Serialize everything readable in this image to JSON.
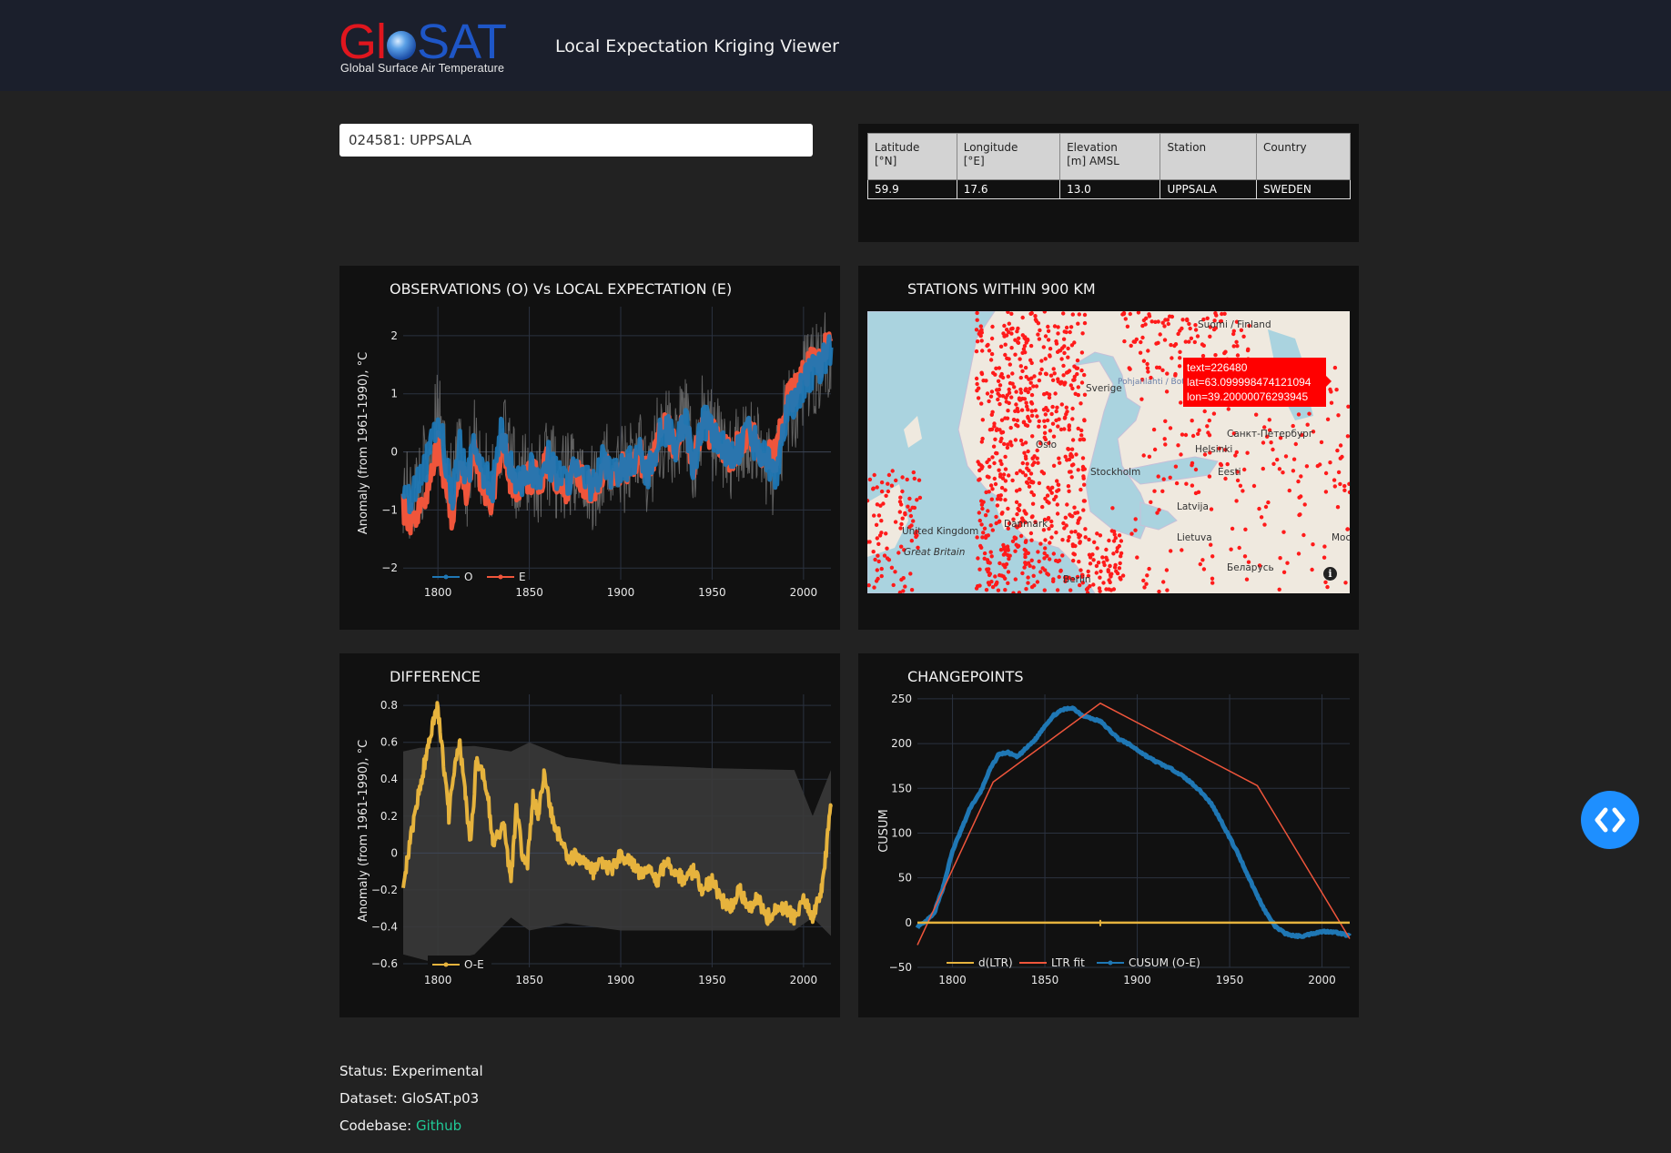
{
  "header": {
    "logo_text": "GloSAT",
    "logo_subtitle": "Global Surface Air Temperature",
    "title": "Local Expectation Kriging Viewer"
  },
  "station_select": {
    "value": "024581: UPPSALA"
  },
  "station_table": {
    "headers": [
      "Latitude\n [°N]",
      "Longitude\n [°E]",
      "Elevation\n [m] AMSL",
      "Station",
      "Country"
    ],
    "row": [
      "59.9",
      "17.6",
      "13.0",
      "UPPSALA",
      "SWEDEN"
    ]
  },
  "panels": {
    "obs": {
      "title": "OBSERVATIONS (O) Vs LOCAL EXPECTATION (E)"
    },
    "map": {
      "title": "STATIONS WITHIN 900 KM"
    },
    "diff": {
      "title": "DIFFERENCE"
    },
    "cp": {
      "title": "CHANGEPOINTS"
    }
  },
  "map": {
    "labels": [
      "Suomi / Finland",
      "Sverige",
      "Pohjanlahti / Bottniska viken",
      "Oslo",
      "Helsinki",
      "Санкт-Петербург",
      "Stockholm",
      "Eesti",
      "Latvija",
      "Danmark",
      "Lietuva",
      "Москва",
      "United Kingdom",
      "Great Britain",
      "Беларусь",
      "Berlin"
    ],
    "tooltip": [
      "text=226480",
      "lat=63.099998474121094",
      "lon=39.20000076293945"
    ],
    "colors": {
      "water": "#aad3df",
      "land": "#efe9df",
      "station": "#ff1a1a"
    }
  },
  "footer": {
    "status": "Status: Experimental",
    "dataset": "Dataset: GloSAT.p03",
    "codebase_label": "Codebase: ",
    "codebase_link": "Github"
  },
  "chart_data": [
    {
      "id": "obs",
      "type": "line",
      "title": "OBSERVATIONS (O) Vs LOCAL EXPECTATION (E)",
      "ylabel": "Anomaly (from 1961-1990), °C",
      "xlim": [
        1781,
        2015
      ],
      "ylim": [
        -2.2,
        2.5
      ],
      "xticks": [
        1800,
        1850,
        1900,
        1950,
        2000
      ],
      "yticks": [
        -2,
        -1,
        0,
        1,
        2
      ],
      "legend": "bottom-left",
      "colors": {
        "O": "#1f77b4",
        "E": "#ef553b",
        "band": "#777777"
      },
      "series": [
        {
          "name": "O",
          "x": [
            1781,
            1785,
            1790,
            1795,
            1800,
            1805,
            1808,
            1812,
            1816,
            1820,
            1825,
            1830,
            1835,
            1840,
            1845,
            1850,
            1855,
            1860,
            1865,
            1870,
            1875,
            1880,
            1885,
            1890,
            1895,
            1900,
            1905,
            1910,
            1915,
            1920,
            1925,
            1930,
            1935,
            1940,
            1945,
            1950,
            1955,
            1960,
            1965,
            1970,
            1975,
            1980,
            1985,
            1990,
            1995,
            2000,
            2005,
            2010,
            2015
          ],
          "y": [
            -0.6,
            -0.9,
            -0.5,
            -0.1,
            0.6,
            -0.2,
            -0.8,
            0.1,
            -0.5,
            0.2,
            -0.4,
            -0.6,
            0.4,
            -0.3,
            -0.5,
            -0.3,
            -0.5,
            -0.1,
            -0.4,
            -0.5,
            -0.3,
            -0.5,
            -0.6,
            -0.2,
            -0.4,
            -0.3,
            -0.2,
            0.0,
            -0.4,
            0.2,
            0.4,
            0.1,
            0.6,
            -0.3,
            0.6,
            0.3,
            0.2,
            -0.2,
            0.1,
            0.3,
            0.1,
            -0.2,
            -0.4,
            0.6,
            0.8,
            1.2,
            1.4,
            1.5,
            1.8
          ]
        },
        {
          "name": "E",
          "x": [
            1781,
            1785,
            1790,
            1795,
            1800,
            1805,
            1808,
            1812,
            1816,
            1820,
            1825,
            1830,
            1835,
            1840,
            1845,
            1850,
            1855,
            1860,
            1865,
            1870,
            1875,
            1880,
            1885,
            1890,
            1895,
            1900,
            1905,
            1910,
            1915,
            1920,
            1925,
            1930,
            1935,
            1940,
            1945,
            1950,
            1955,
            1960,
            1965,
            1970,
            1975,
            1980,
            1985,
            1990,
            1995,
            2000,
            2005,
            2010,
            2015
          ],
          "y": [
            -0.9,
            -1.2,
            -0.9,
            -0.6,
            0.1,
            -0.6,
            -1.1,
            -0.2,
            -0.7,
            0.0,
            -0.7,
            -0.8,
            0.2,
            -0.5,
            -0.6,
            -0.4,
            -0.5,
            -0.2,
            -0.4,
            -0.6,
            -0.3,
            -0.5,
            -0.6,
            -0.3,
            -0.4,
            -0.3,
            -0.2,
            0.0,
            -0.4,
            0.2,
            0.4,
            0.1,
            0.6,
            -0.2,
            0.5,
            0.3,
            0.2,
            -0.1,
            0.1,
            0.3,
            0.1,
            0.0,
            -0.1,
            0.8,
            1.0,
            1.4,
            1.5,
            1.6,
            1.9
          ]
        }
      ]
    },
    {
      "id": "diff",
      "type": "line",
      "title": "DIFFERENCE",
      "ylabel": "Anomaly (from 1961-1990), °C",
      "xlim": [
        1781,
        2015
      ],
      "ylim": [
        -0.62,
        0.86
      ],
      "xticks": [
        1800,
        1850,
        1900,
        1950,
        2000
      ],
      "yticks": [
        -0.6,
        -0.4,
        -0.2,
        0,
        0.2,
        0.4,
        0.6,
        0.8
      ],
      "legend": "bottom-left",
      "colors": {
        "O-E": "#e6b33d",
        "band": "#3a3a3a"
      },
      "series": [
        {
          "name": "O-E",
          "x": [
            1781,
            1784,
            1788,
            1792,
            1795,
            1798,
            1800,
            1803,
            1806,
            1809,
            1812,
            1815,
            1818,
            1821,
            1824,
            1827,
            1830,
            1833,
            1836,
            1840,
            1843,
            1846,
            1849,
            1852,
            1855,
            1858,
            1861,
            1864,
            1868,
            1872,
            1876,
            1880,
            1885,
            1890,
            1895,
            1900,
            1905,
            1910,
            1915,
            1920,
            1925,
            1930,
            1935,
            1940,
            1945,
            1950,
            1955,
            1960,
            1965,
            1970,
            1975,
            1980,
            1985,
            1990,
            1995,
            2000,
            2005,
            2010,
            2015
          ],
          "y": [
            -0.15,
            0.0,
            0.25,
            0.45,
            0.6,
            0.75,
            0.78,
            0.5,
            0.2,
            0.45,
            0.6,
            0.3,
            0.05,
            0.5,
            0.45,
            0.35,
            0.05,
            0.1,
            0.15,
            -0.15,
            0.25,
            0.0,
            -0.05,
            0.3,
            0.2,
            0.45,
            0.25,
            0.15,
            0.05,
            -0.05,
            0.0,
            -0.05,
            -0.1,
            -0.05,
            -0.1,
            0.0,
            -0.05,
            -0.1,
            -0.1,
            -0.15,
            -0.05,
            -0.1,
            -0.15,
            -0.1,
            -0.2,
            -0.15,
            -0.25,
            -0.3,
            -0.2,
            -0.3,
            -0.25,
            -0.35,
            -0.3,
            -0.3,
            -0.35,
            -0.25,
            -0.35,
            -0.2,
            0.25
          ]
        }
      ]
    },
    {
      "id": "cp",
      "type": "line",
      "title": "CHANGEPOINTS",
      "ylabel": "CUSUM",
      "xlim": [
        1781,
        2015
      ],
      "ylim": [
        -50,
        255
      ],
      "xticks": [
        1800,
        1850,
        1900,
        1950,
        2000
      ],
      "yticks": [
        -50,
        0,
        50,
        100,
        150,
        200,
        250
      ],
      "legend": "bottom-left",
      "colors": {
        "d(LTR)": "#e6b33d",
        "LTR fit": "#ef553b",
        "CUSUM (O-E)": "#1f77b4"
      },
      "series": [
        {
          "name": "d(LTR)",
          "x": [
            1781,
            2015
          ],
          "y": [
            0,
            0
          ]
        },
        {
          "name": "LTR fit",
          "x": [
            1781,
            1822,
            1880,
            1965,
            2015
          ],
          "y": [
            -25,
            157,
            245,
            153,
            -18
          ]
        },
        {
          "name": "CUSUM (O-E)",
          "x": [
            1781,
            1785,
            1790,
            1795,
            1800,
            1805,
            1810,
            1815,
            1820,
            1825,
            1830,
            1835,
            1840,
            1845,
            1850,
            1855,
            1860,
            1865,
            1870,
            1875,
            1880,
            1885,
            1890,
            1895,
            1900,
            1905,
            1910,
            1915,
            1920,
            1925,
            1930,
            1935,
            1940,
            1945,
            1950,
            1955,
            1960,
            1965,
            1970,
            1975,
            1980,
            1985,
            1990,
            1995,
            2000,
            2005,
            2010,
            2015
          ],
          "y": [
            -5,
            0,
            10,
            40,
            80,
            105,
            130,
            145,
            170,
            188,
            190,
            185,
            195,
            205,
            220,
            232,
            238,
            240,
            232,
            228,
            225,
            215,
            205,
            200,
            193,
            186,
            180,
            175,
            170,
            163,
            155,
            145,
            133,
            115,
            95,
            75,
            52,
            30,
            10,
            -5,
            -12,
            -15,
            -15,
            -12,
            -10,
            -10,
            -12,
            -15
          ]
        }
      ]
    }
  ]
}
